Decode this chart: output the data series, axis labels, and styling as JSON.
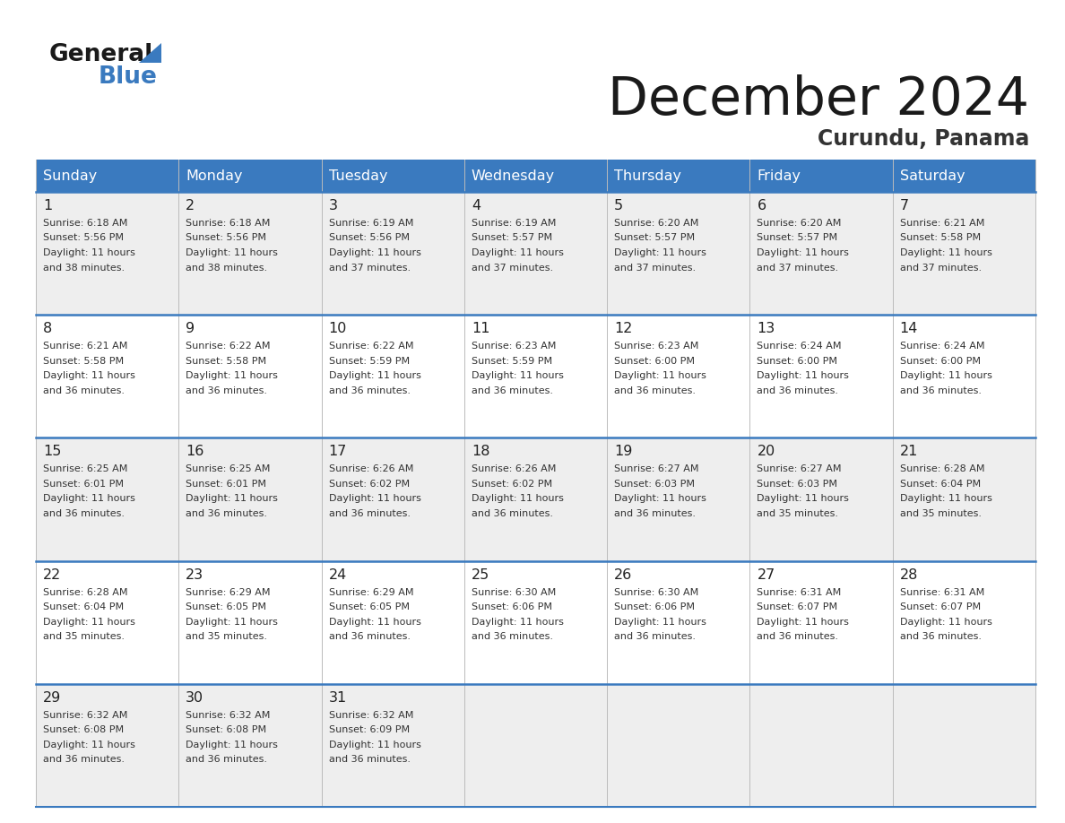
{
  "title": "December 2024",
  "subtitle": "Curundu, Panama",
  "header_color": "#3a7abf",
  "header_text_color": "#ffffff",
  "bg_color": "#ffffff",
  "cell_bg_even": "#eeeeee",
  "cell_bg_odd": "#ffffff",
  "text_color": "#333333",
  "separator_color": "#3a7abf",
  "grid_color": "#bbbbbb",
  "days_of_week": [
    "Sunday",
    "Monday",
    "Tuesday",
    "Wednesday",
    "Thursday",
    "Friday",
    "Saturday"
  ],
  "weeks": [
    [
      {
        "day": 1,
        "sunrise": "6:18 AM",
        "sunset": "5:56 PM",
        "daylight": "11 hours and 38 minutes."
      },
      {
        "day": 2,
        "sunrise": "6:18 AM",
        "sunset": "5:56 PM",
        "daylight": "11 hours and 38 minutes."
      },
      {
        "day": 3,
        "sunrise": "6:19 AM",
        "sunset": "5:56 PM",
        "daylight": "11 hours and 37 minutes."
      },
      {
        "day": 4,
        "sunrise": "6:19 AM",
        "sunset": "5:57 PM",
        "daylight": "11 hours and 37 minutes."
      },
      {
        "day": 5,
        "sunrise": "6:20 AM",
        "sunset": "5:57 PM",
        "daylight": "11 hours and 37 minutes."
      },
      {
        "day": 6,
        "sunrise": "6:20 AM",
        "sunset": "5:57 PM",
        "daylight": "11 hours and 37 minutes."
      },
      {
        "day": 7,
        "sunrise": "6:21 AM",
        "sunset": "5:58 PM",
        "daylight": "11 hours and 37 minutes."
      }
    ],
    [
      {
        "day": 8,
        "sunrise": "6:21 AM",
        "sunset": "5:58 PM",
        "daylight": "11 hours and 36 minutes."
      },
      {
        "day": 9,
        "sunrise": "6:22 AM",
        "sunset": "5:58 PM",
        "daylight": "11 hours and 36 minutes."
      },
      {
        "day": 10,
        "sunrise": "6:22 AM",
        "sunset": "5:59 PM",
        "daylight": "11 hours and 36 minutes."
      },
      {
        "day": 11,
        "sunrise": "6:23 AM",
        "sunset": "5:59 PM",
        "daylight": "11 hours and 36 minutes."
      },
      {
        "day": 12,
        "sunrise": "6:23 AM",
        "sunset": "6:00 PM",
        "daylight": "11 hours and 36 minutes."
      },
      {
        "day": 13,
        "sunrise": "6:24 AM",
        "sunset": "6:00 PM",
        "daylight": "11 hours and 36 minutes."
      },
      {
        "day": 14,
        "sunrise": "6:24 AM",
        "sunset": "6:00 PM",
        "daylight": "11 hours and 36 minutes."
      }
    ],
    [
      {
        "day": 15,
        "sunrise": "6:25 AM",
        "sunset": "6:01 PM",
        "daylight": "11 hours and 36 minutes."
      },
      {
        "day": 16,
        "sunrise": "6:25 AM",
        "sunset": "6:01 PM",
        "daylight": "11 hours and 36 minutes."
      },
      {
        "day": 17,
        "sunrise": "6:26 AM",
        "sunset": "6:02 PM",
        "daylight": "11 hours and 36 minutes."
      },
      {
        "day": 18,
        "sunrise": "6:26 AM",
        "sunset": "6:02 PM",
        "daylight": "11 hours and 36 minutes."
      },
      {
        "day": 19,
        "sunrise": "6:27 AM",
        "sunset": "6:03 PM",
        "daylight": "11 hours and 36 minutes."
      },
      {
        "day": 20,
        "sunrise": "6:27 AM",
        "sunset": "6:03 PM",
        "daylight": "11 hours and 35 minutes."
      },
      {
        "day": 21,
        "sunrise": "6:28 AM",
        "sunset": "6:04 PM",
        "daylight": "11 hours and 35 minutes."
      }
    ],
    [
      {
        "day": 22,
        "sunrise": "6:28 AM",
        "sunset": "6:04 PM",
        "daylight": "11 hours and 35 minutes."
      },
      {
        "day": 23,
        "sunrise": "6:29 AM",
        "sunset": "6:05 PM",
        "daylight": "11 hours and 35 minutes."
      },
      {
        "day": 24,
        "sunrise": "6:29 AM",
        "sunset": "6:05 PM",
        "daylight": "11 hours and 36 minutes."
      },
      {
        "day": 25,
        "sunrise": "6:30 AM",
        "sunset": "6:06 PM",
        "daylight": "11 hours and 36 minutes."
      },
      {
        "day": 26,
        "sunrise": "6:30 AM",
        "sunset": "6:06 PM",
        "daylight": "11 hours and 36 minutes."
      },
      {
        "day": 27,
        "sunrise": "6:31 AM",
        "sunset": "6:07 PM",
        "daylight": "11 hours and 36 minutes."
      },
      {
        "day": 28,
        "sunrise": "6:31 AM",
        "sunset": "6:07 PM",
        "daylight": "11 hours and 36 minutes."
      }
    ],
    [
      {
        "day": 29,
        "sunrise": "6:32 AM",
        "sunset": "6:08 PM",
        "daylight": "11 hours and 36 minutes."
      },
      {
        "day": 30,
        "sunrise": "6:32 AM",
        "sunset": "6:08 PM",
        "daylight": "11 hours and 36 minutes."
      },
      {
        "day": 31,
        "sunrise": "6:32 AM",
        "sunset": "6:09 PM",
        "daylight": "11 hours and 36 minutes."
      },
      null,
      null,
      null,
      null
    ]
  ]
}
